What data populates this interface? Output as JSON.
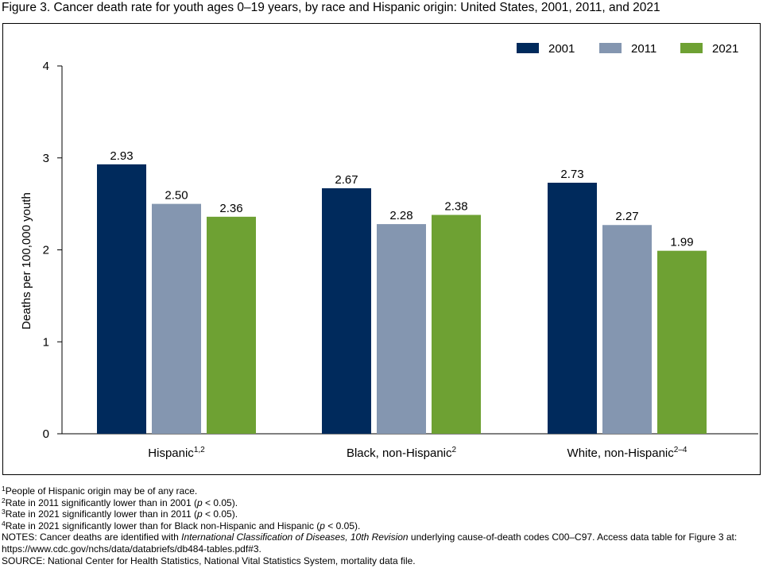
{
  "title": "Figure 3. Cancer death rate for youth ages 0–19 years, by race and Hispanic origin: United States, 2001, 2011, and 2021",
  "colors": {
    "2001": "#002a5c",
    "2011": "#8496b0",
    "2021": "#6ea133"
  },
  "chart_data": {
    "type": "bar",
    "categories": [
      {
        "label": "Hispanic",
        "sup": "1,2"
      },
      {
        "label": "Black, non-Hispanic",
        "sup": "2"
      },
      {
        "label": "White, non-Hispanic",
        "sup": "2–4"
      }
    ],
    "series": [
      {
        "name": "2001",
        "values": [
          2.93,
          2.67,
          2.73
        ],
        "labels": [
          "2.93",
          "2.67",
          "2.73"
        ]
      },
      {
        "name": "2011",
        "values": [
          2.5,
          2.28,
          2.27
        ],
        "labels": [
          "2.50",
          "2.28",
          "2.27"
        ]
      },
      {
        "name": "2021",
        "values": [
          2.36,
          2.38,
          1.99
        ],
        "labels": [
          "2.36",
          "2.38",
          "1.99"
        ]
      }
    ],
    "ylabel": "Deaths per 100,000 youth",
    "ylim": [
      0,
      4
    ],
    "yticks": [
      "0",
      "1",
      "2",
      "3",
      "4"
    ],
    "grid": false,
    "legend_position": "top-right"
  },
  "notes": {
    "fn1_sup": "1",
    "fn1": "People of Hispanic origin may be of any race.",
    "fn2_sup": "2",
    "fn2_a": "Rate in 2011 significantly lower than in 2001 (",
    "fn2_p": "p",
    "fn2_b": " < 0.05).",
    "fn3_sup": "3",
    "fn3_a": "Rate in 2021 significantly lower than in 2011 (",
    "fn3_p": "p",
    "fn3_b": " < 0.05).",
    "fn4_sup": "4",
    "fn4_a": "Rate in 2021 significantly lower than for Black non-Hispanic and Hispanic (",
    "fn4_p": "p",
    "fn4_b": " < 0.05).",
    "notes_a": "NOTES: Cancer deaths are identified with ",
    "notes_icd": "International Classification of Diseases, 10th Revision",
    "notes_b": " underlying cause-of-death codes C00–C97. Access data table for Figure 3 at: https://www.cdc.gov/nchs/data/databriefs/db484-tables.pdf#3.",
    "source": "SOURCE: National Center for Health Statistics, National Vital Statistics System, mortality data file."
  }
}
